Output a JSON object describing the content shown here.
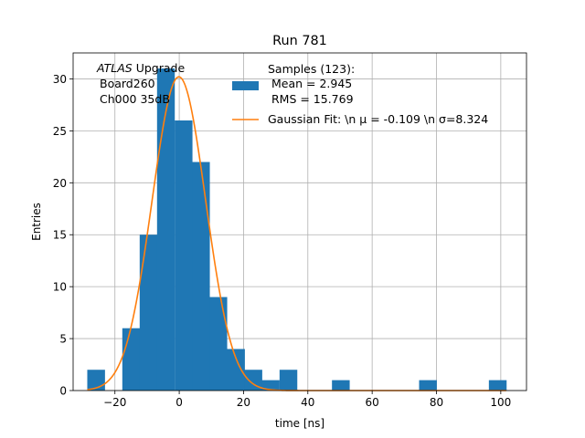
{
  "chart_data": {
    "type": "bar",
    "title": "Run 781",
    "xlabel": "time [ns]",
    "ylabel": "Entries",
    "xlim": [
      -33,
      108
    ],
    "ylim": [
      0,
      32.5
    ],
    "xticks": [
      -20,
      0,
      20,
      40,
      60,
      80,
      100
    ],
    "yticks": [
      0,
      5,
      10,
      15,
      20,
      25,
      30
    ],
    "xtick_labels": [
      "−20",
      "0",
      "20",
      "40",
      "60",
      "80",
      "100"
    ],
    "ytick_labels": [
      "0",
      "5",
      "10",
      "15",
      "20",
      "25",
      "30"
    ],
    "grid": true,
    "bin_width": 5.43,
    "bins": [
      {
        "x0": -28.6,
        "count": 2
      },
      {
        "x0": -17.7,
        "count": 6
      },
      {
        "x0": -12.3,
        "count": 15
      },
      {
        "x0": -6.9,
        "count": 31
      },
      {
        "x0": -1.4,
        "count": 26
      },
      {
        "x0": 4.0,
        "count": 22
      },
      {
        "x0": 9.4,
        "count": 9
      },
      {
        "x0": 14.9,
        "count": 4
      },
      {
        "x0": 20.3,
        "count": 2
      },
      {
        "x0": 25.7,
        "count": 1
      },
      {
        "x0": 31.2,
        "count": 2
      },
      {
        "x0": 47.5,
        "count": 1
      },
      {
        "x0": 74.6,
        "count": 1
      },
      {
        "x0": 96.3,
        "count": 1
      }
    ],
    "fit": {
      "mu": -0.109,
      "sigma": 8.324,
      "amplitude": 30.2,
      "x_range": [
        -28.6,
        101.7
      ]
    },
    "colors": {
      "bars": "#1f77b4",
      "fit": "#ff7f0e",
      "grid": "#b0b0b0"
    },
    "legend": {
      "placement": "top-right",
      "samples_lines": [
        "Samples (123):",
        " Mean = 2.945",
        " RMS = 15.769"
      ],
      "fit_label": "Gaussian Fit: \\n μ = -0.109 \\n σ=8.324"
    },
    "annotation": {
      "atlas": "ATLAS",
      "upgrade": " Upgrade",
      "board": "Board260",
      "channel": "Ch000 35dB"
    }
  }
}
